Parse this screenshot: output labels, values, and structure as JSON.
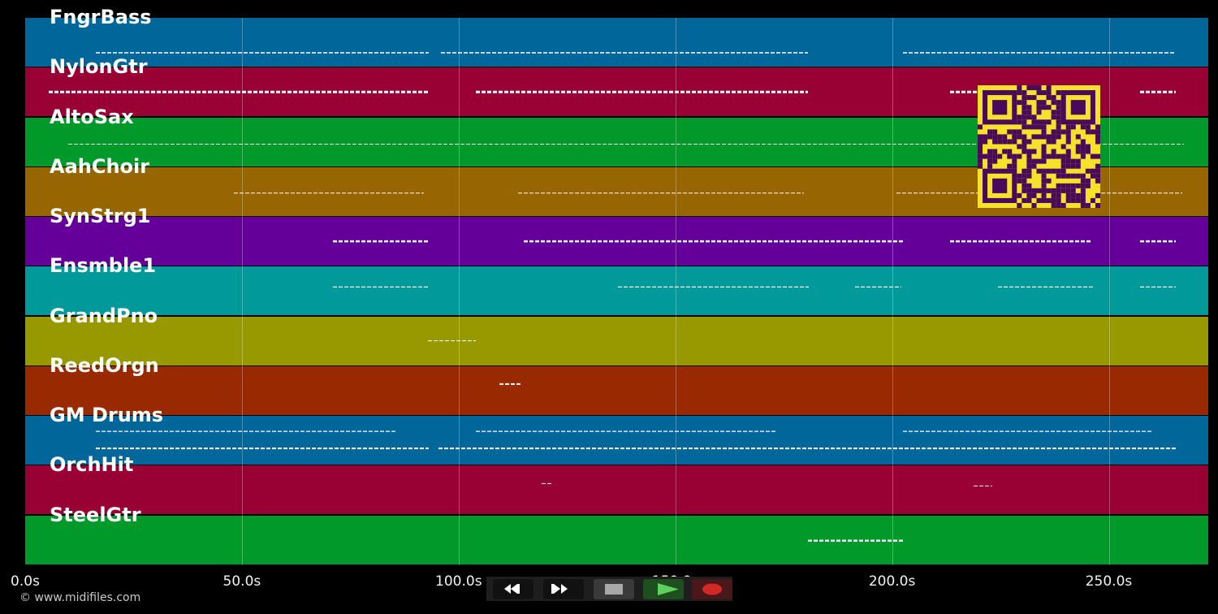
{
  "tracks": [
    {
      "label": "FngrBass",
      "color": "#016699"
    },
    {
      "label": "NylonGtr",
      "color": "#990033"
    },
    {
      "label": "AltoSax",
      "color": "#009a2a"
    },
    {
      "label": "AahChoir",
      "color": "#986600"
    },
    {
      "label": "SynStrg1",
      "color": "#640099"
    },
    {
      "label": "Ensmble1",
      "color": "#019999"
    },
    {
      "label": "GrandPno",
      "color": "#989900"
    },
    {
      "label": "ReedOrgn",
      "color": "#982900"
    },
    {
      "label": "GM Drums",
      "color": "#016699"
    },
    {
      "label": "OrchHit",
      "color": "#990033"
    },
    {
      "label": "SteelGtr",
      "color": "#009a2a"
    }
  ],
  "timeline": {
    "ticks": [
      "0.0s",
      "50.0s",
      "100.0s",
      "150.0s",
      "200.0s",
      "250.0s"
    ],
    "tick_values_s": [
      0,
      50,
      100,
      150,
      200,
      250
    ],
    "max_s": 272
  },
  "footer": {
    "copyright": "© www.midifiles.com"
  },
  "controls": {
    "rewind": "rewind-icon",
    "fast_forward": "fast-forward-icon",
    "stop": "stop-icon",
    "play": "play-icon",
    "record": "record-icon"
  },
  "colors": {
    "background": "#000000",
    "qr_fg": "#4a0a5c",
    "qr_bg": "#f6e12b"
  }
}
